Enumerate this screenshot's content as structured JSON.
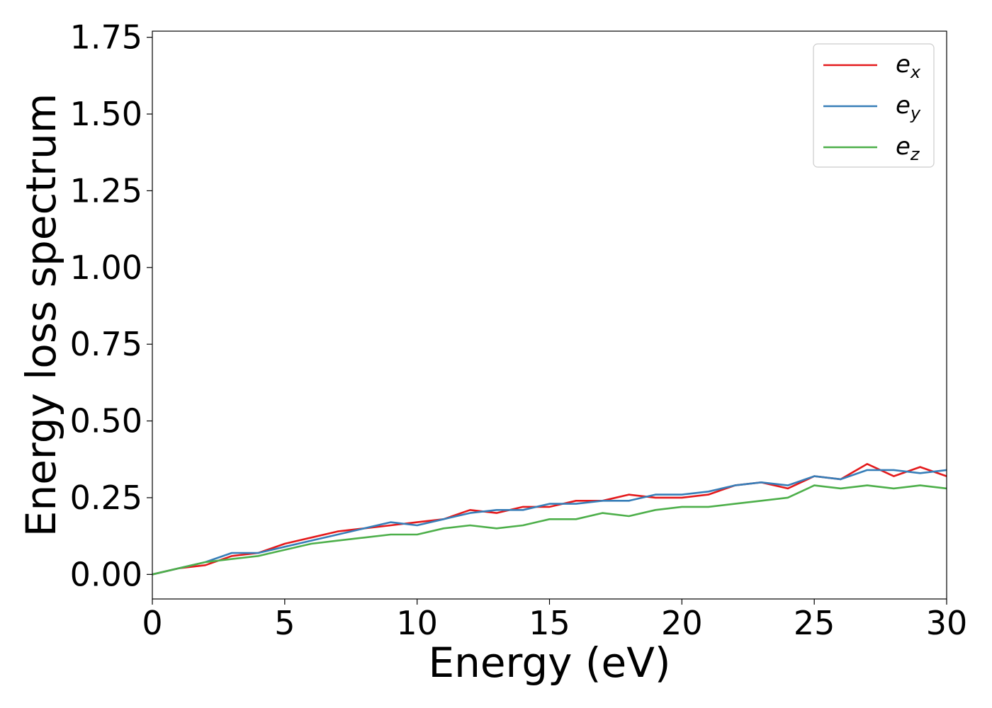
{
  "chart_data": {
    "type": "line",
    "title": "",
    "xlabel": "Energy (eV)",
    "ylabel": "Energy loss spectrum",
    "xlim": [
      0,
      30
    ],
    "ylim": [
      -0.08,
      1.77
    ],
    "xticks": [
      0,
      5,
      10,
      15,
      20,
      25,
      30
    ],
    "xtick_labels": [
      "0",
      "5",
      "10",
      "15",
      "20",
      "25",
      "30"
    ],
    "yticks": [
      0.0,
      0.25,
      0.5,
      0.75,
      1.0,
      1.25,
      1.5,
      1.75
    ],
    "ytick_labels": [
      "0.00",
      "0.25",
      "0.50",
      "0.75",
      "1.00",
      "1.25",
      "1.50",
      "1.75"
    ],
    "grid": false,
    "legend_position": "top-right",
    "x": [
      0,
      1,
      2,
      3,
      4,
      5,
      6,
      7,
      8,
      9,
      10,
      11,
      12,
      13,
      14,
      15,
      16,
      17,
      18,
      19,
      20,
      21,
      22,
      23,
      24,
      25,
      26,
      27,
      28,
      29,
      30
    ],
    "series": [
      {
        "name": "e",
        "sub": "x",
        "color": "#e41a1c",
        "values": [
          0.0,
          0.02,
          0.03,
          0.06,
          0.07,
          0.1,
          0.12,
          0.14,
          0.15,
          0.16,
          0.17,
          0.18,
          0.21,
          0.2,
          0.22,
          0.22,
          0.24,
          0.24,
          0.26,
          0.25,
          0.25,
          0.26,
          0.29,
          0.3,
          0.28,
          0.32,
          0.31,
          0.36,
          0.32,
          0.35,
          0.32
        ]
      },
      {
        "name": "e",
        "sub": "y",
        "color": "#377eb8",
        "values": [
          0.0,
          0.02,
          0.04,
          0.07,
          0.07,
          0.09,
          0.11,
          0.13,
          0.15,
          0.17,
          0.16,
          0.18,
          0.2,
          0.21,
          0.21,
          0.23,
          0.23,
          0.24,
          0.24,
          0.26,
          0.26,
          0.27,
          0.29,
          0.3,
          0.29,
          0.32,
          0.31,
          0.34,
          0.34,
          0.33,
          0.34
        ]
      },
      {
        "name": "e",
        "sub": "z",
        "color": "#4daf4a",
        "values": [
          0.0,
          0.02,
          0.04,
          0.05,
          0.06,
          0.08,
          0.1,
          0.11,
          0.12,
          0.13,
          0.13,
          0.15,
          0.16,
          0.15,
          0.16,
          0.18,
          0.18,
          0.2,
          0.19,
          0.21,
          0.22,
          0.22,
          0.23,
          0.24,
          0.25,
          0.29,
          0.28,
          0.29,
          0.28,
          0.29,
          0.28
        ]
      }
    ]
  }
}
